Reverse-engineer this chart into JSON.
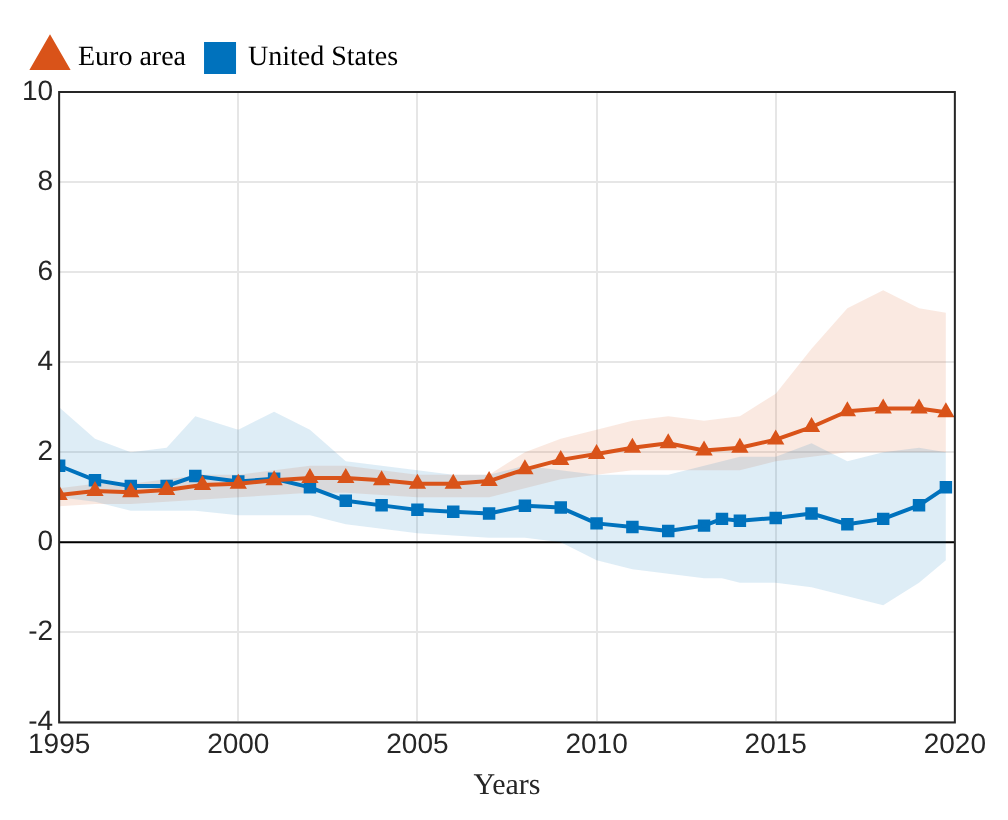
{
  "chart_data": {
    "type": "line",
    "xlabel": "Years",
    "xlim": [
      1995,
      2020
    ],
    "xticks": [
      1995,
      2000,
      2005,
      2010,
      2015,
      2020
    ],
    "ylim": [
      -4,
      10
    ],
    "yticks": [
      -4,
      -2,
      0,
      2,
      4,
      6,
      8,
      10
    ],
    "grid": true,
    "legend": "top left",
    "line_style": "solid",
    "ref_lines": [
      {
        "axis": "y",
        "value": 0,
        "color": "#000000"
      }
    ],
    "series": [
      {
        "name": "United States",
        "color": "#0072bd",
        "marker": "square",
        "x": [
          1995,
          1996,
          1997,
          1998,
          1998.8,
          2000,
          2001,
          2002,
          2003,
          2004,
          2005,
          2006,
          2007,
          2008,
          2009,
          2010,
          2011,
          2012,
          2013,
          2013.5,
          2014,
          2015,
          2016,
          2017,
          2018,
          2019,
          2019.75
        ],
        "values": [
          1.7,
          1.38,
          1.25,
          1.25,
          1.47,
          1.35,
          1.41,
          1.22,
          0.92,
          0.82,
          0.72,
          0.68,
          0.64,
          0.81,
          0.77,
          0.42,
          0.34,
          0.25,
          0.37,
          0.52,
          0.48,
          0.54,
          0.64,
          0.4,
          0.52,
          0.82,
          1.22
        ],
        "lower": [
          1.0,
          0.9,
          0.7,
          0.7,
          0.7,
          0.6,
          0.6,
          0.6,
          0.4,
          0.3,
          0.2,
          0.15,
          0.1,
          0.1,
          0.0,
          -0.4,
          -0.6,
          -0.7,
          -0.8,
          -0.8,
          -0.9,
          -0.9,
          -1.0,
          -1.2,
          -1.4,
          -0.9,
          -0.4
        ],
        "upper": [
          3.0,
          2.3,
          2.0,
          2.1,
          2.8,
          2.5,
          2.9,
          2.5,
          1.8,
          1.7,
          1.6,
          1.5,
          1.5,
          1.7,
          1.6,
          1.5,
          1.5,
          1.5,
          1.7,
          1.8,
          1.9,
          1.9,
          2.2,
          1.8,
          2.0,
          2.1,
          2.0
        ]
      },
      {
        "name": "Euro area",
        "color": "#d95319",
        "marker": "triangle",
        "x": [
          1995,
          1996,
          1997,
          1998,
          1999,
          2000,
          2001,
          2002,
          2003,
          2004,
          2005,
          2006,
          2007,
          2008,
          2009,
          2010,
          2011,
          2012,
          2013,
          2014,
          2015,
          2016,
          2017,
          2018,
          2019,
          2019.75
        ],
        "values": [
          1.05,
          1.14,
          1.11,
          1.16,
          1.27,
          1.3,
          1.38,
          1.43,
          1.43,
          1.38,
          1.3,
          1.3,
          1.36,
          1.62,
          1.83,
          1.96,
          2.1,
          2.2,
          2.04,
          2.1,
          2.28,
          2.56,
          2.91,
          2.97,
          2.97,
          2.89
        ],
        "lower": [
          0.8,
          0.85,
          0.85,
          0.9,
          0.95,
          1.0,
          1.05,
          1.1,
          1.1,
          1.05,
          1.0,
          1.0,
          1.0,
          1.2,
          1.4,
          1.5,
          1.6,
          1.6,
          1.6,
          1.6,
          1.8,
          1.9,
          2.0,
          2.0,
          2.0,
          2.0
        ],
        "upper": [
          1.2,
          1.3,
          1.3,
          1.4,
          1.5,
          1.5,
          1.6,
          1.7,
          1.7,
          1.6,
          1.5,
          1.5,
          1.5,
          2.0,
          2.3,
          2.5,
          2.7,
          2.8,
          2.7,
          2.8,
          3.3,
          4.3,
          5.2,
          5.6,
          5.2,
          5.1
        ]
      }
    ]
  }
}
